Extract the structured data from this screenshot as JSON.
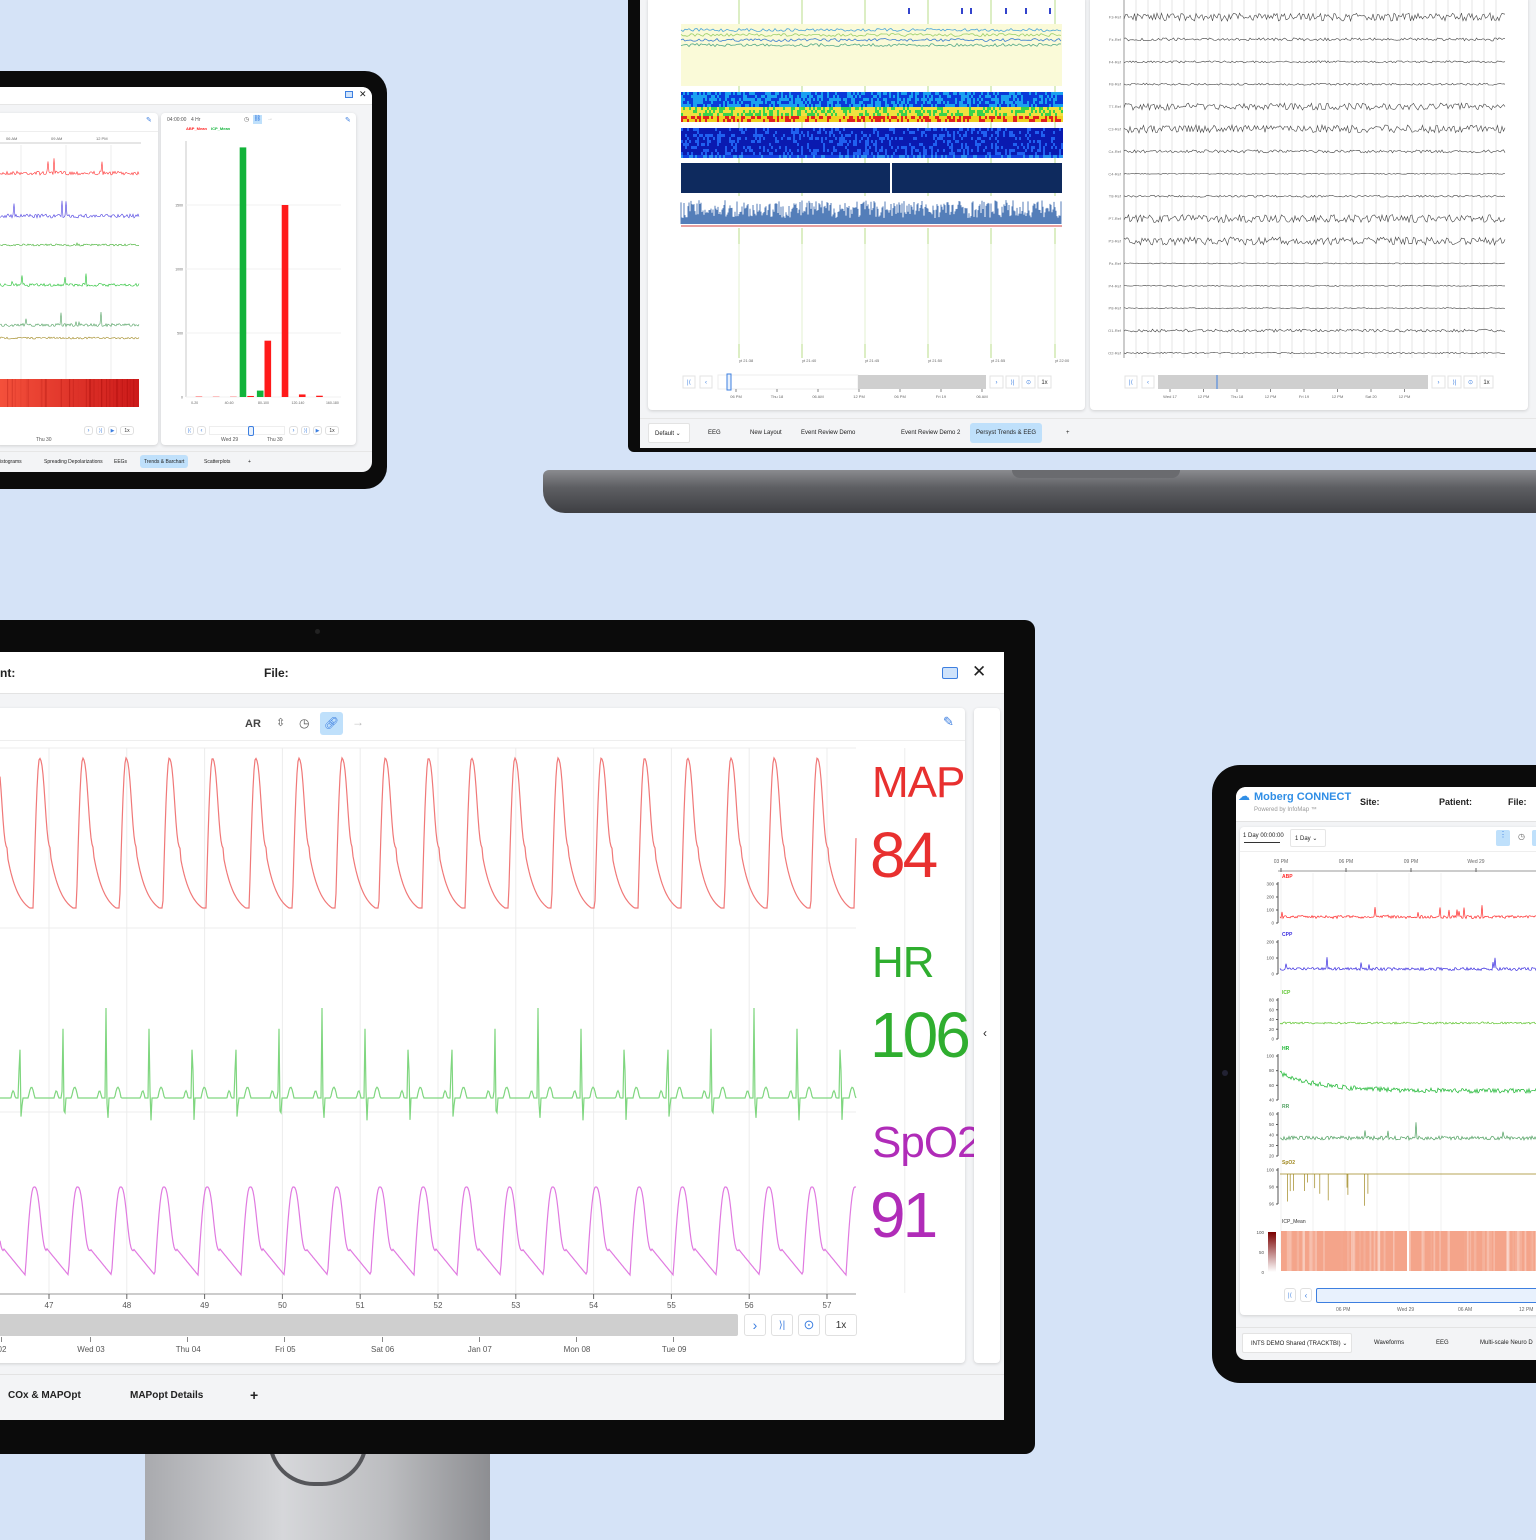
{
  "colors": {
    "background": "#d5e3f7",
    "accent": "#3d7fe0",
    "map": "#e8302f",
    "hr": "#2fae2f",
    "spo2": "#b02cb8",
    "active_tab": "#bfe0fb"
  },
  "tablet_left": {
    "tabs": [
      {
        "label": "istograms"
      },
      {
        "label": "Spreading Depolarizations"
      },
      {
        "label": "EEGs"
      },
      {
        "label": "Trends & Barchart",
        "active": true
      },
      {
        "label": "Scatterplots"
      },
      {
        "label": "+"
      }
    ],
    "trend_axis": [
      "06 AM",
      "09 AM",
      "12 PM"
    ],
    "trend_bottom_axis": [
      "Thu 30"
    ],
    "speed": "1x",
    "bar_panel": {
      "duration": "04:00:00",
      "window": "4 Hr",
      "speed": "1x",
      "bottom_axis": [
        "Wed 29",
        "Thu 30"
      ]
    }
  },
  "chart_data": {
    "type": "bar",
    "series": [
      {
        "name": "ABP_Mean",
        "color": "#ff1a1a",
        "values": [
          3,
          2,
          2,
          8,
          440,
          1500,
          20,
          10,
          0
        ]
      },
      {
        "name": "ICP_Mean",
        "color": "#12b33a",
        "values": [
          0,
          0,
          0,
          1950,
          50,
          0,
          0,
          0,
          0
        ]
      }
    ],
    "categories": [
      "0-20",
      "20-40",
      "40-60",
      "60-80",
      "80-100",
      "100-120",
      "120-140",
      "140-160",
      "160-180"
    ],
    "tick_labels": [
      "0-20",
      "40-60",
      "80-100",
      "120-140",
      "160-180"
    ],
    "yticks": [
      0,
      500,
      1000,
      1500
    ],
    "ylim": [
      0,
      2000
    ],
    "legend": "top-left"
  },
  "laptop": {
    "time_labels": [
      "yt 21:38",
      "yt 21:40",
      "yt 21:45",
      "yt 21:50",
      "yt 21:55",
      "yt 22:00"
    ],
    "left_axis": [
      "06 PM",
      "Thu 18",
      "06 AM",
      "12 PM",
      "06 PM",
      "Fri 19",
      "06 AM"
    ],
    "right_axis": [
      "Wed 17",
      "12 PM",
      "Thu 18",
      "12 PM",
      "Fri 19",
      "12 PM",
      "Sat 20",
      "12 PM"
    ],
    "speed": "1x",
    "eeg_channels": [
      "F3-Ref",
      "Fz-Ref",
      "F4-Ref",
      "F8-Ref",
      "T7-Ref",
      "C3-Ref",
      "Cz-Ref",
      "C4-Ref",
      "T8-Ref",
      "P7-Ref",
      "P3-Ref",
      "Pz-Ref",
      "P4-Ref",
      "P8-Ref",
      "O1-Ref",
      "O2-Ref"
    ],
    "layout_select": "Default",
    "tabs": [
      {
        "label": "EEG"
      },
      {
        "label": "New Layout"
      },
      {
        "label": "Event Review Demo"
      },
      {
        "label": "Event Review Demo 2"
      },
      {
        "label": "Persyst Trends & EEG",
        "active": true
      },
      {
        "label": "+"
      }
    ]
  },
  "monitor": {
    "header": {
      "patient_label": "nt:",
      "file_label": "File:"
    },
    "toolbar": {
      "ar_label": "AR"
    },
    "vitals": [
      {
        "label": "MAP",
        "value": "84",
        "color": "#e8302f"
      },
      {
        "label": "HR",
        "value": "106",
        "color": "#2fae2f"
      },
      {
        "label": "SpO2",
        "value": "91",
        "color": "#b02cb8"
      }
    ],
    "wave_axis": [
      "47",
      "48",
      "49",
      "50",
      "51",
      "52",
      "53",
      "54",
      "55",
      "56",
      "57"
    ],
    "timeline_axis": [
      "02",
      "Wed 03",
      "Thu 04",
      "Fri 05",
      "Sat 06",
      "Jan 07",
      "Mon 08",
      "Tue 09"
    ],
    "speed": "1x",
    "tabs": [
      {
        "label": "COx & MAPOpt"
      },
      {
        "label": "MAPopt Details"
      },
      {
        "label": "+"
      }
    ]
  },
  "tablet_right": {
    "brand": "Moberg CONNECT",
    "powered": "Powered by InfoMap ™",
    "header": {
      "site": "Site:",
      "patient": "Patient:",
      "file": "File:"
    },
    "duration": "1 Day 00:00:00",
    "window": "1 Day",
    "top_axis": [
      "03 PM",
      "06 PM",
      "09 PM",
      "Wed 29"
    ],
    "channels": [
      {
        "name": "ABP",
        "color": "#ff2a2a",
        "ticks": [
          "300",
          "200",
          "100",
          "0"
        ]
      },
      {
        "name": "CPP",
        "color": "#3b2ee0",
        "ticks": [
          "200",
          "100",
          "0"
        ]
      },
      {
        "name": "ICP",
        "color": "#5cc42c",
        "ticks": [
          "80",
          "60",
          "40",
          "20",
          "0"
        ]
      },
      {
        "name": "HR",
        "color": "#18b52e",
        "ticks": [
          "100",
          "80",
          "60",
          "40"
        ]
      },
      {
        "name": "RR",
        "color": "#4fa060",
        "ticks": [
          "60",
          "50",
          "40",
          "30",
          "20"
        ]
      },
      {
        "name": "SpO2",
        "color": "#a08820",
        "ticks": [
          "100",
          "98",
          "96"
        ]
      }
    ],
    "heatmap": {
      "name": "ICP_Mean",
      "ticks": [
        "100",
        "50",
        "0"
      ]
    },
    "bottom_axis": [
      "06 PM",
      "Wed 29",
      "06 AM",
      "12 PM"
    ],
    "layout_select": "INTS DEMO Shared (TRACKTBI)",
    "tabs": [
      {
        "label": "Waveforms"
      },
      {
        "label": "EEG"
      },
      {
        "label": "Multi-scale Neuro D"
      }
    ]
  }
}
